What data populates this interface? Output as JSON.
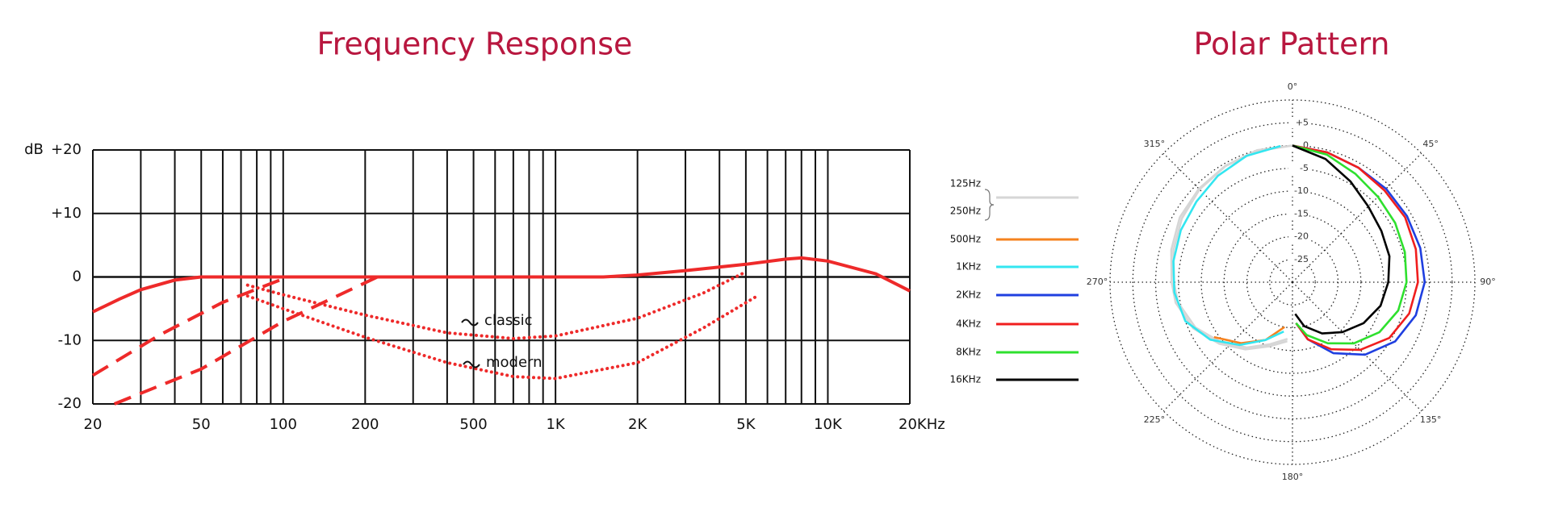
{
  "chart_data": [
    {
      "type": "line",
      "title": "Frequency Response",
      "ylabel": "dB",
      "xscale": "log",
      "xlim": [
        20,
        20000
      ],
      "ylim": [
        -20,
        20
      ],
      "xticks": [
        20,
        50,
        100,
        200,
        500,
        {
          "value": 1000,
          "label": "1K"
        },
        {
          "value": 2000,
          "label": "2K"
        },
        {
          "value": 5000,
          "label": "5K"
        },
        {
          "value": 10000,
          "label": "10K"
        },
        {
          "value": 20000,
          "label": "20KHz"
        }
      ],
      "minor_xticks": [
        30,
        40,
        60,
        70,
        80,
        90,
        300,
        400,
        600,
        700,
        800,
        900,
        3000,
        4000,
        6000,
        7000,
        8000,
        9000
      ],
      "yticks": [
        {
          "value": 20,
          "label": "+20"
        },
        {
          "value": 10,
          "label": "+10"
        },
        0,
        -10,
        -20
      ],
      "grid": true,
      "series": [
        {
          "style": "solid",
          "color": "#ee2a2a",
          "x": [
            20,
            25,
            30,
            40,
            50,
            60,
            100,
            200,
            500,
            1000,
            1500,
            2000,
            3000,
            5000,
            7000,
            8000,
            10000,
            15000,
            20000
          ],
          "values": [
            -5.5,
            -3.5,
            -2,
            -0.5,
            0,
            0,
            0,
            0,
            0,
            0,
            0,
            0.3,
            1,
            2,
            2.8,
            3,
            2.5,
            0.5,
            -2.2
          ]
        },
        {
          "style": "dashed",
          "color": "#ee2a2a",
          "x": [
            20,
            35,
            60,
            104
          ],
          "values": [
            -15.5,
            -9.2,
            -4,
            0
          ]
        },
        {
          "style": "dashed",
          "color": "#ee2a2a",
          "x": [
            24,
            50,
            100,
            222
          ],
          "values": [
            -20,
            -14.5,
            -7,
            0
          ]
        },
        {
          "name": "classic",
          "style": "dotted",
          "color": "#ee2a2a",
          "x": [
            74,
            100,
            200,
            400,
            700,
            1000,
            2000,
            3500,
            5000
          ],
          "values": [
            -1.3,
            -2.8,
            -6,
            -8.8,
            -9.7,
            -9.3,
            -6.5,
            -2.5,
            0.8
          ]
        },
        {
          "name": "modern",
          "style": "dotted",
          "color": "#ee2a2a",
          "x": [
            74,
            100,
            200,
            400,
            700,
            1000,
            2000,
            3500,
            5500
          ],
          "values": [
            -3,
            -5,
            -9.5,
            -13.5,
            -15.7,
            -16,
            -13.5,
            -8,
            -3
          ]
        }
      ]
    },
    {
      "type": "polar",
      "title": "Polar Pattern",
      "rlim": [
        -30,
        10
      ],
      "rticks": [
        {
          "value": 5,
          "label": "+5"
        },
        0,
        -5,
        -10,
        -15,
        -20,
        -25
      ],
      "thetaticks": [
        {
          "value": 0,
          "label": "0°"
        },
        {
          "value": 45,
          "label": "45°"
        },
        {
          "value": 90,
          "label": "90°"
        },
        {
          "value": 135,
          "label": "135°"
        },
        {
          "value": 180,
          "label": "180°"
        },
        {
          "value": 225,
          "label": "225°"
        },
        {
          "value": 270,
          "label": "270°"
        },
        {
          "value": 315,
          "label": "315°"
        }
      ],
      "series": [
        {
          "name": "125Hz",
          "color": "#d6d6d6",
          "theta": [
            185,
            200,
            215,
            230,
            245,
            260,
            270,
            285,
            300,
            315,
            330,
            345,
            360
          ],
          "values": [
            -17,
            -15,
            -12,
            -9,
            -6,
            -4,
            -3.5,
            -2.5,
            -1.5,
            -1,
            -0.5,
            0,
            0
          ]
        },
        {
          "name": "250Hz",
          "color": "#d6d6d6",
          "theta": [
            185,
            200,
            215,
            230,
            245,
            260,
            270,
            285,
            300,
            315,
            330,
            345,
            360
          ],
          "values": [
            -17.5,
            -15.5,
            -12.5,
            -9.5,
            -6.5,
            -4.5,
            -4,
            -3,
            -2,
            -1.2,
            -0.6,
            -0.2,
            0
          ]
        },
        {
          "name": "500Hz",
          "color": "#f5821f",
          "theta": [
            190,
            205,
            220,
            235
          ],
          "values": [
            -20,
            -16,
            -12.5,
            -9
          ]
        },
        {
          "name": "1KHz",
          "color": "#33e6f0",
          "theta": [
            190,
            205,
            220,
            235,
            250,
            265,
            280,
            295,
            310,
            325,
            340,
            355
          ],
          "values": [
            -19,
            -16,
            -12,
            -8,
            -5,
            -4,
            -3.5,
            -3,
            -2.5,
            -1.5,
            -0.5,
            0
          ]
        },
        {
          "name": "2KHz",
          "color": "#1f3fe0",
          "theta": [
            0,
            15,
            30,
            45,
            60,
            75,
            90,
            105,
            120,
            135,
            150,
            165,
            175
          ],
          "values": [
            0,
            -0.5,
            -1,
            -1,
            -1,
            -1,
            -1,
            -2,
            -4,
            -7.5,
            -12,
            -17,
            -21
          ]
        },
        {
          "name": "4KHz",
          "color": "#f01e1e",
          "theta": [
            0,
            15,
            30,
            45,
            60,
            75,
            90,
            105,
            120,
            135,
            150,
            165,
            175
          ],
          "values": [
            0,
            -0.5,
            -1,
            -1.5,
            -1.5,
            -2,
            -2.5,
            -3.5,
            -5.5,
            -9,
            -13,
            -17,
            -21
          ]
        },
        {
          "name": "8KHz",
          "color": "#2ee02e",
          "theta": [
            0,
            15,
            30,
            45,
            60,
            75,
            90,
            105,
            120,
            135,
            150,
            165,
            175
          ],
          "values": [
            0,
            -1,
            -2.5,
            -3.5,
            -4,
            -4.5,
            -5,
            -6,
            -8,
            -11,
            -14.5,
            -18,
            -21
          ]
        },
        {
          "name": "16KHz",
          "color": "#000000",
          "theta": [
            0,
            15,
            30,
            45,
            60,
            75,
            90,
            105,
            120,
            135,
            150,
            165,
            175
          ],
          "values": [
            0,
            -2,
            -4.5,
            -6.5,
            -7.5,
            -8,
            -9,
            -10,
            -12,
            -14.5,
            -17,
            -20,
            -23
          ]
        }
      ]
    }
  ]
}
